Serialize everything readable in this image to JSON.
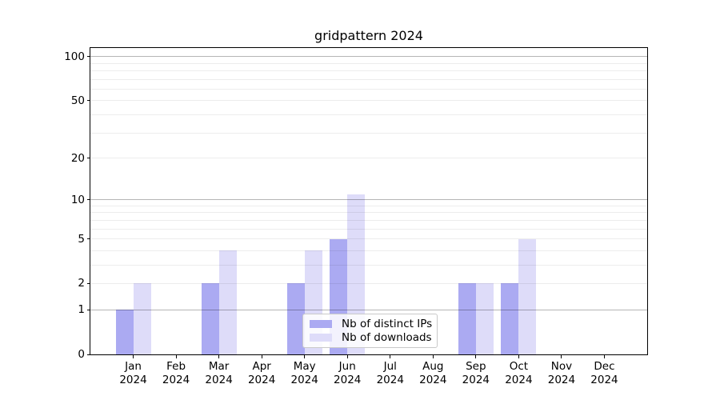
{
  "chart_data": {
    "type": "bar",
    "title": "gridpattern 2024",
    "categories": [
      {
        "month": "Jan",
        "year": "2024"
      },
      {
        "month": "Feb",
        "year": "2024"
      },
      {
        "month": "Mar",
        "year": "2024"
      },
      {
        "month": "Apr",
        "year": "2024"
      },
      {
        "month": "May",
        "year": "2024"
      },
      {
        "month": "Jun",
        "year": "2024"
      },
      {
        "month": "Jul",
        "year": "2024"
      },
      {
        "month": "Aug",
        "year": "2024"
      },
      {
        "month": "Sep",
        "year": "2024"
      },
      {
        "month": "Oct",
        "year": "2024"
      },
      {
        "month": "Nov",
        "year": "2024"
      },
      {
        "month": "Dec",
        "year": "2024"
      }
    ],
    "series": [
      {
        "name": "Nb of distinct IPs",
        "color": "#abaaf2",
        "values": [
          1,
          0,
          2,
          0,
          2,
          5,
          0,
          0,
          2,
          2,
          0,
          0
        ]
      },
      {
        "name": "Nb of downloads",
        "color": "#dedcf9",
        "values": [
          2,
          0,
          4,
          0,
          4,
          11,
          0,
          0,
          2,
          5,
          0,
          0
        ]
      }
    ],
    "xlabel": "",
    "ylabel": "",
    "y_axis": {
      "scale": "log1p",
      "tick_values": [
        0,
        1,
        2,
        5,
        10,
        20,
        50,
        100
      ],
      "tick_labels": [
        "0",
        "1",
        "2",
        "5",
        "10",
        "20",
        "50",
        "100"
      ],
      "major_gridlines": [
        1,
        10,
        100
      ],
      "minor_gridlines": [
        2,
        3,
        4,
        5,
        6,
        7,
        8,
        9,
        20,
        30,
        40,
        50,
        60,
        70,
        80,
        90
      ],
      "ylim": [
        0,
        114.6
      ]
    },
    "legend": {
      "position": "lower center"
    },
    "grid": true
  }
}
